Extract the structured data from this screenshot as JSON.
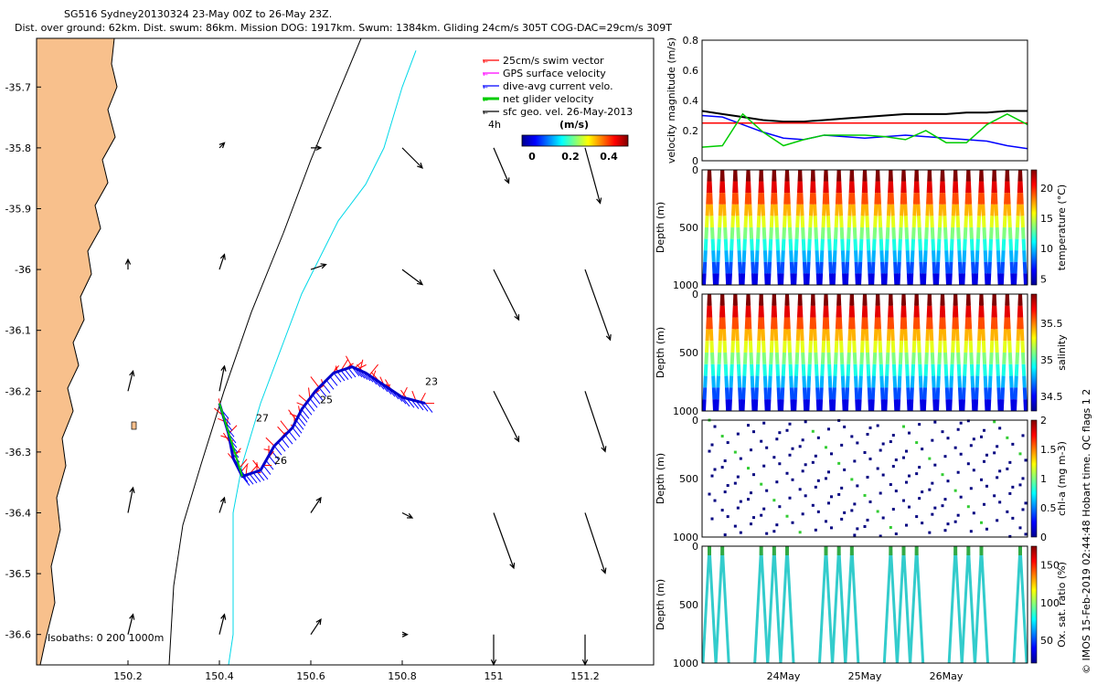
{
  "header": {
    "title_line1": "SG516 Sydney20130324 23-May 00Z to 26-May 23Z.",
    "title_line2": "Dist. over ground: 62km. Dist. swum: 86km. Mission DOG: 1917km. Swum: 1384km. Gliding 24cm/s 305T COG-DAC=29cm/s 309T"
  },
  "watermark": "© IMOS 15-Feb-2019 02:44:48 Hobart time. QC flags 1  2",
  "chart_data": [
    {
      "type": "scatter",
      "name": "map",
      "xlim": [
        150.0,
        151.35
      ],
      "ylim": [
        -36.65,
        -35.62
      ],
      "x_ticks": [
        "150.2",
        "150.4",
        "150.6",
        "150.8",
        "151",
        "151.2"
      ],
      "x_tick_values": [
        150.2,
        150.4,
        150.6,
        150.8,
        151.0,
        151.2
      ],
      "y_ticks": [
        "-35.7",
        "-35.8",
        "-35.9",
        "-36",
        "-36.1",
        "-36.2",
        "-36.3",
        "-36.4",
        "-36.5",
        "-36.6"
      ],
      "y_tick_values": [
        -35.7,
        -35.8,
        -35.9,
        -36.0,
        -36.1,
        -36.2,
        -36.3,
        -36.4,
        -36.5,
        -36.6
      ],
      "legend": {
        "placement": "top-right",
        "items": [
          {
            "label": "25cm/s swim vector",
            "color": "#ff0000"
          },
          {
            "label": "GPS surface velocity",
            "color": "#ff00ff"
          },
          {
            "label": "dive-avg current velo.",
            "color": "#0000ff"
          },
          {
            "label": "net glider velocity",
            "color": "#00cc00"
          },
          {
            "label": "sfc geo. vel. 26-May-2013",
            "color": "#000000"
          }
        ],
        "time_label": "4h",
        "colorbar_label": "(m/s)",
        "colorbar_ticks": [
          "0",
          "0.2",
          "0.4"
        ]
      },
      "isobaths_label": "Isobaths: 0   200  1000m",
      "coastline_color": "#f8c08c",
      "day_labels": [
        {
          "text": "27",
          "lon": 150.48,
          "lat": -36.25
        },
        {
          "text": "26",
          "lon": 150.52,
          "lat": -36.32
        },
        {
          "text": "25",
          "lon": 150.62,
          "lat": -36.22
        },
        {
          "text": "23",
          "lon": 150.85,
          "lat": -36.19
        }
      ],
      "track": {
        "lon": [
          150.85,
          150.8,
          150.76,
          150.72,
          150.69,
          150.65,
          150.61,
          150.58,
          150.56,
          150.52,
          150.49,
          150.45,
          150.43,
          150.42,
          150.4
        ],
        "lat": [
          -36.22,
          -36.21,
          -36.19,
          -36.17,
          -36.16,
          -36.17,
          -36.2,
          -36.23,
          -36.26,
          -36.29,
          -36.33,
          -36.34,
          -36.31,
          -36.27,
          -36.22
        ]
      },
      "isobath_200": {
        "lon": [
          150.71,
          150.66,
          150.6,
          150.54,
          150.47,
          150.41,
          150.36,
          150.32,
          150.3,
          150.29
        ],
        "lat": [
          -35.62,
          -35.71,
          -35.82,
          -35.94,
          -36.07,
          -36.2,
          -36.32,
          -36.42,
          -36.52,
          -36.65
        ]
      },
      "isobath_1000": {
        "lon": [
          150.83,
          150.8,
          150.76,
          150.72,
          150.66,
          150.62,
          150.58,
          150.54,
          150.49,
          150.45,
          150.43,
          150.43,
          150.43,
          150.42
        ],
        "lat": [
          -35.64,
          -35.7,
          -35.8,
          -35.86,
          -35.92,
          -35.98,
          -36.04,
          -36.12,
          -36.22,
          -36.32,
          -36.4,
          -36.5,
          -36.6,
          -36.65
        ]
      },
      "geo_vectors": [
        {
          "lon": 150.4,
          "lat": -35.8,
          "u": 0.01,
          "v": 0.01
        },
        {
          "lon": 150.6,
          "lat": -35.8,
          "u": 0.02,
          "v": 0.0
        },
        {
          "lon": 150.8,
          "lat": -35.8,
          "u": 0.04,
          "v": -0.04
        },
        {
          "lon": 151.0,
          "lat": -35.8,
          "u": 0.03,
          "v": -0.07
        },
        {
          "lon": 151.2,
          "lat": -35.8,
          "u": 0.03,
          "v": -0.11
        },
        {
          "lon": 150.2,
          "lat": -36.0,
          "u": 0.0,
          "v": 0.02
        },
        {
          "lon": 150.4,
          "lat": -36.0,
          "u": 0.01,
          "v": 0.03
        },
        {
          "lon": 150.6,
          "lat": -36.0,
          "u": 0.03,
          "v": 0.01
        },
        {
          "lon": 150.8,
          "lat": -36.0,
          "u": 0.04,
          "v": -0.03
        },
        {
          "lon": 151.0,
          "lat": -36.0,
          "u": 0.05,
          "v": -0.1
        },
        {
          "lon": 151.2,
          "lat": -36.0,
          "u": 0.05,
          "v": -0.14
        },
        {
          "lon": 150.2,
          "lat": -36.2,
          "u": 0.01,
          "v": 0.04
        },
        {
          "lon": 150.4,
          "lat": -36.2,
          "u": 0.01,
          "v": 0.05
        },
        {
          "lon": 151.0,
          "lat": -36.2,
          "u": 0.05,
          "v": -0.1
        },
        {
          "lon": 151.2,
          "lat": -36.2,
          "u": 0.04,
          "v": -0.12
        },
        {
          "lon": 150.2,
          "lat": -36.4,
          "u": 0.01,
          "v": 0.05
        },
        {
          "lon": 150.4,
          "lat": -36.4,
          "u": 0.01,
          "v": 0.03
        },
        {
          "lon": 150.6,
          "lat": -36.4,
          "u": 0.02,
          "v": 0.03
        },
        {
          "lon": 150.8,
          "lat": -36.4,
          "u": 0.02,
          "v": -0.01
        },
        {
          "lon": 151.0,
          "lat": -36.4,
          "u": 0.04,
          "v": -0.11
        },
        {
          "lon": 151.2,
          "lat": -36.4,
          "u": 0.04,
          "v": -0.12
        },
        {
          "lon": 150.2,
          "lat": -36.6,
          "u": 0.01,
          "v": 0.04
        },
        {
          "lon": 150.4,
          "lat": -36.6,
          "u": 0.01,
          "v": 0.04
        },
        {
          "lon": 150.6,
          "lat": -36.6,
          "u": 0.02,
          "v": 0.03
        },
        {
          "lon": 150.8,
          "lat": -36.6,
          "u": 0.01,
          "v": 0.0
        },
        {
          "lon": 151.0,
          "lat": -36.6,
          "u": 0.0,
          "v": -0.06
        },
        {
          "lon": 151.2,
          "lat": -36.6,
          "u": 0.0,
          "v": -0.06
        }
      ]
    },
    {
      "type": "line",
      "name": "velocity",
      "ylabel": "velocity magnitude (m/s)",
      "ylim": [
        0,
        0.8
      ],
      "y_ticks": [
        "0",
        "0.2",
        "0.4",
        "0.6",
        "0.8"
      ],
      "y_tick_values": [
        0,
        0.2,
        0.4,
        0.6,
        0.8
      ],
      "x_days": [
        0,
        0.25,
        0.5,
        0.75,
        1.0,
        1.25,
        1.5,
        1.75,
        2.0,
        2.25,
        2.5,
        2.75,
        3.0,
        3.25,
        3.5,
        3.75,
        4.0
      ],
      "series": [
        {
          "color": "#000000",
          "values": [
            0.33,
            0.31,
            0.29,
            0.27,
            0.26,
            0.26,
            0.27,
            0.28,
            0.29,
            0.3,
            0.31,
            0.31,
            0.31,
            0.32,
            0.32,
            0.33,
            0.33
          ]
        },
        {
          "color": "#0000ff",
          "values": [
            0.3,
            0.29,
            0.24,
            0.19,
            0.15,
            0.14,
            0.17,
            0.16,
            0.15,
            0.16,
            0.17,
            0.16,
            0.15,
            0.14,
            0.13,
            0.1,
            0.08
          ]
        },
        {
          "color": "#ff0000",
          "values": [
            0.25,
            0.25,
            0.25,
            0.25,
            0.25,
            0.25,
            0.25,
            0.25,
            0.25,
            0.25,
            0.25,
            0.25,
            0.25,
            0.25,
            0.25,
            0.25,
            0.25
          ]
        },
        {
          "color": "#00cc00",
          "values": [
            0.09,
            0.1,
            0.31,
            0.19,
            0.1,
            0.14,
            0.17,
            0.17,
            0.17,
            0.16,
            0.14,
            0.2,
            0.12,
            0.12,
            0.24,
            0.31,
            0.24
          ]
        }
      ]
    },
    {
      "type": "scatter",
      "name": "temperature",
      "ylabel": "Depth (m)",
      "colorbar_label": "temperature (°C)",
      "cticks": [
        "5",
        "10",
        "15",
        "20"
      ],
      "clim": [
        4,
        23
      ],
      "y_ticks": [
        "0",
        "500",
        "1000"
      ],
      "ylim": [
        0,
        1000
      ],
      "dives": 25
    },
    {
      "type": "scatter",
      "name": "salinity",
      "ylabel": "Depth (m)",
      "colorbar_label": "salinity",
      "cticks": [
        "34.5",
        "35",
        "35.5"
      ],
      "clim": [
        34.3,
        35.9
      ],
      "y_ticks": [
        "0",
        "500",
        "1000"
      ],
      "ylim": [
        0,
        1000
      ],
      "dives": 25
    },
    {
      "type": "scatter",
      "name": "chla",
      "ylabel": "Depth (m)",
      "colorbar_label": "chl-a (mg m-3)",
      "cticks": [
        "0",
        "0.5",
        "1",
        "1.5",
        "2"
      ],
      "clim": [
        0,
        2
      ],
      "y_ticks": [
        "0",
        "500",
        "1000"
      ],
      "ylim": [
        0,
        1000
      ],
      "dives": 25
    },
    {
      "type": "scatter",
      "name": "oxygen",
      "ylabel": "Depth (m)",
      "colorbar_label": "Ox. sat. ratio (%)",
      "cticks": [
        "50",
        "100",
        "150"
      ],
      "clim": [
        20,
        175
      ],
      "y_ticks": [
        "0",
        "500",
        "1000"
      ],
      "ylim": [
        0,
        1000
      ],
      "x_ticks": [
        "24May",
        "25May",
        "26May"
      ],
      "x_tick_days": [
        1,
        2,
        3
      ],
      "dives": 25
    }
  ]
}
